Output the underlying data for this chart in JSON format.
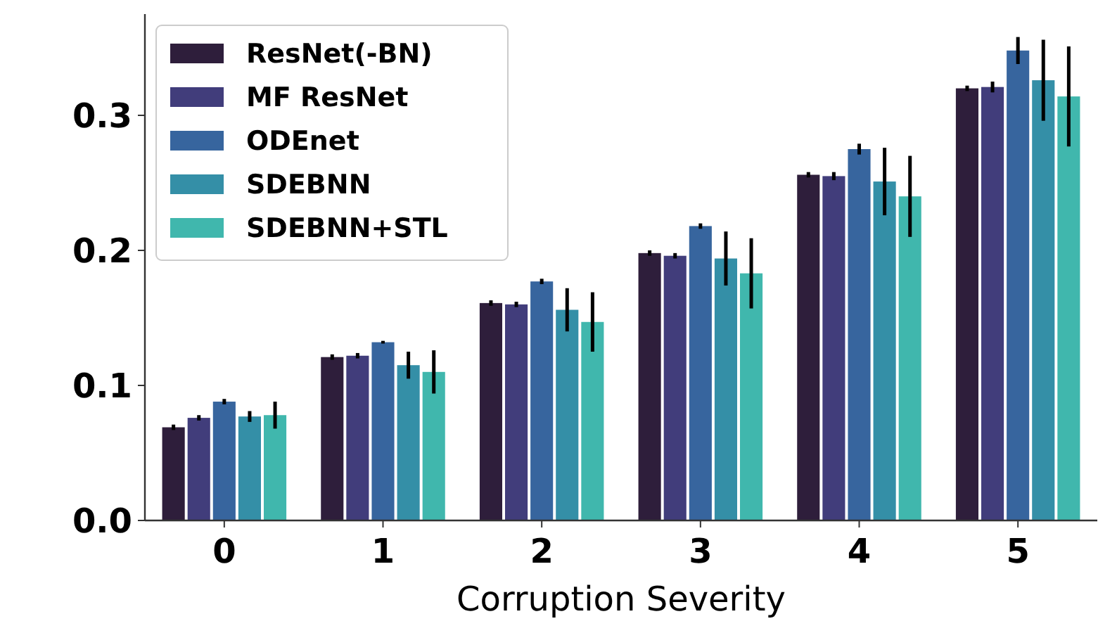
{
  "chart_data": {
    "type": "bar",
    "xlabel": "Corruption Severity",
    "categories": [
      "0",
      "1",
      "2",
      "3",
      "4",
      "5"
    ],
    "series": [
      {
        "name": "ResNet(-BN)",
        "color": "#2e1e3b",
        "values": [
          0.069,
          0.121,
          0.161,
          0.198,
          0.256,
          0.32
        ],
        "errors": [
          0.002,
          0.002,
          0.002,
          0.002,
          0.002,
          0.002
        ]
      },
      {
        "name": "MF ResNet",
        "color": "#413d7b",
        "values": [
          0.076,
          0.122,
          0.16,
          0.196,
          0.255,
          0.321
        ],
        "errors": [
          0.002,
          0.002,
          0.002,
          0.002,
          0.003,
          0.004
        ]
      },
      {
        "name": "ODEnet",
        "color": "#37659e",
        "values": [
          0.088,
          0.132,
          0.177,
          0.218,
          0.275,
          0.348
        ],
        "errors": [
          0.002,
          0.001,
          0.002,
          0.002,
          0.004,
          0.01
        ]
      },
      {
        "name": "SDEBNN",
        "color": "#348fa7",
        "values": [
          0.077,
          0.115,
          0.156,
          0.194,
          0.251,
          0.326
        ],
        "errors": [
          0.004,
          0.01,
          0.016,
          0.02,
          0.025,
          0.03
        ]
      },
      {
        "name": "SDEBNN+STL",
        "color": "#40b7ad",
        "values": [
          0.078,
          0.11,
          0.147,
          0.183,
          0.24,
          0.314
        ],
        "errors": [
          0.01,
          0.016,
          0.022,
          0.026,
          0.03,
          0.037
        ]
      }
    ],
    "ylim": [
      0,
      0.375
    ],
    "yticks": [
      {
        "value": 0,
        "label": "0.0"
      },
      0.1,
      0.2,
      0.3
    ],
    "grid": false,
    "legend": "top left"
  }
}
